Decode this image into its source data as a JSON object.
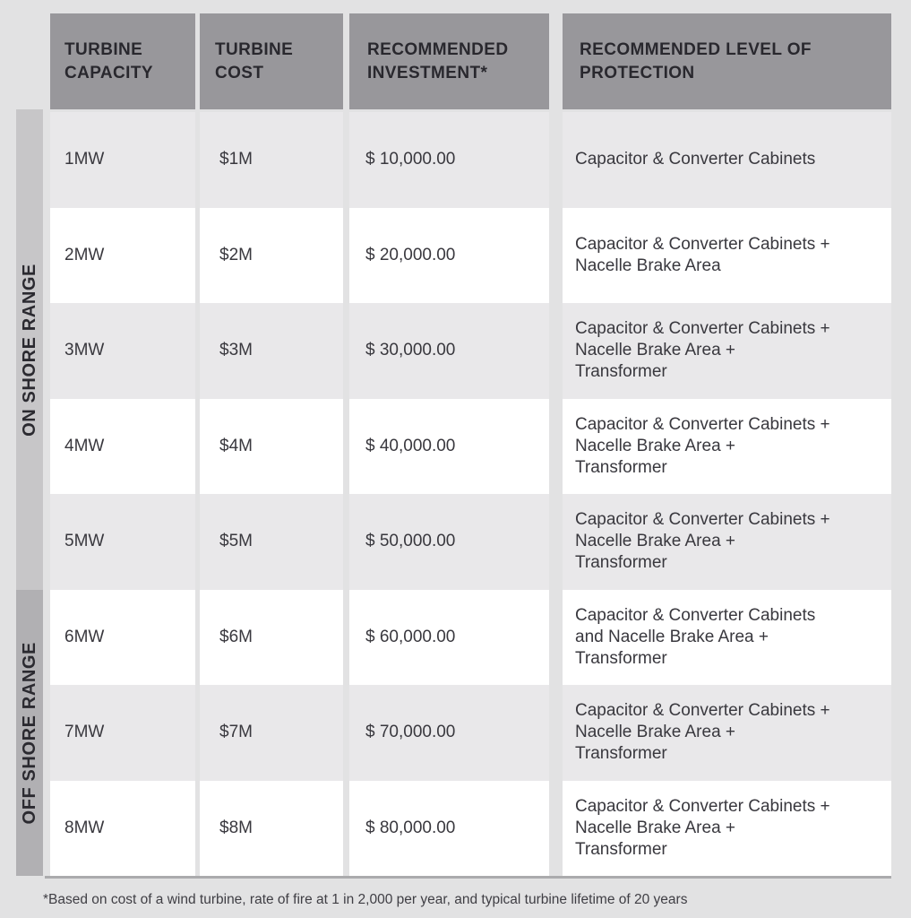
{
  "colors": {
    "page_bg": "#e2e2e3",
    "header_bg": "#98979b",
    "row_alt_bg": "#e9e8ea",
    "row_bg": "#ffffff",
    "onshore_band_bg": "#c7c6c8",
    "offshore_band_bg": "#b1b0b3",
    "text": "#39383e"
  },
  "side_labels": {
    "onshore": "ON SHORE RANGE",
    "offshore": "OFF SHORE RANGE"
  },
  "table": {
    "headers": [
      "TURBINE\nCAPACITY",
      "TURBINE\nCOST",
      "RECOMMENDED\nINVESTMENT*",
      "RECOMMENDED LEVEL OF\nPROTECTION"
    ],
    "rows": [
      {
        "range": "onshore",
        "capacity": "1MW",
        "cost": "$1M",
        "investment": "$ 10,000.00",
        "protection": "Capacitor & Converter Cabinets"
      },
      {
        "range": "onshore",
        "capacity": "2MW",
        "cost": "$2M",
        "investment": "$ 20,000.00",
        "protection": "Capacitor & Converter Cabinets +\nNacelle Brake Area"
      },
      {
        "range": "onshore",
        "capacity": "3MW",
        "cost": "$3M",
        "investment": "$ 30,000.00",
        "protection": "Capacitor & Converter Cabinets +\nNacelle Brake Area +\nTransformer"
      },
      {
        "range": "onshore",
        "capacity": "4MW",
        "cost": "$4M",
        "investment": "$ 40,000.00",
        "protection": "Capacitor & Converter Cabinets +\nNacelle Brake Area +\nTransformer"
      },
      {
        "range": "onshore",
        "capacity": "5MW",
        "cost": "$5M",
        "investment": "$ 50,000.00",
        "protection": "Capacitor & Converter Cabinets +\nNacelle Brake Area +\nTransformer"
      },
      {
        "range": "offshore",
        "capacity": "6MW",
        "cost": "$6M",
        "investment": "$ 60,000.00",
        "protection": "Capacitor & Converter Cabinets\nand Nacelle Brake Area +\nTransformer"
      },
      {
        "range": "offshore",
        "capacity": "7MW",
        "cost": "$7M",
        "investment": "$ 70,000.00",
        "protection": "Capacitor & Converter Cabinets +\nNacelle Brake Area +\nTransformer"
      },
      {
        "range": "offshore",
        "capacity": "8MW",
        "cost": "$8M",
        "investment": "$ 80,000.00",
        "protection": "Capacitor & Converter Cabinets +\nNacelle Brake Area +\nTransformer"
      }
    ]
  },
  "footnote": "*Based on cost of a wind turbine, rate of fire at 1 in 2,000 per year, and typical turbine lifetime of 20 years"
}
